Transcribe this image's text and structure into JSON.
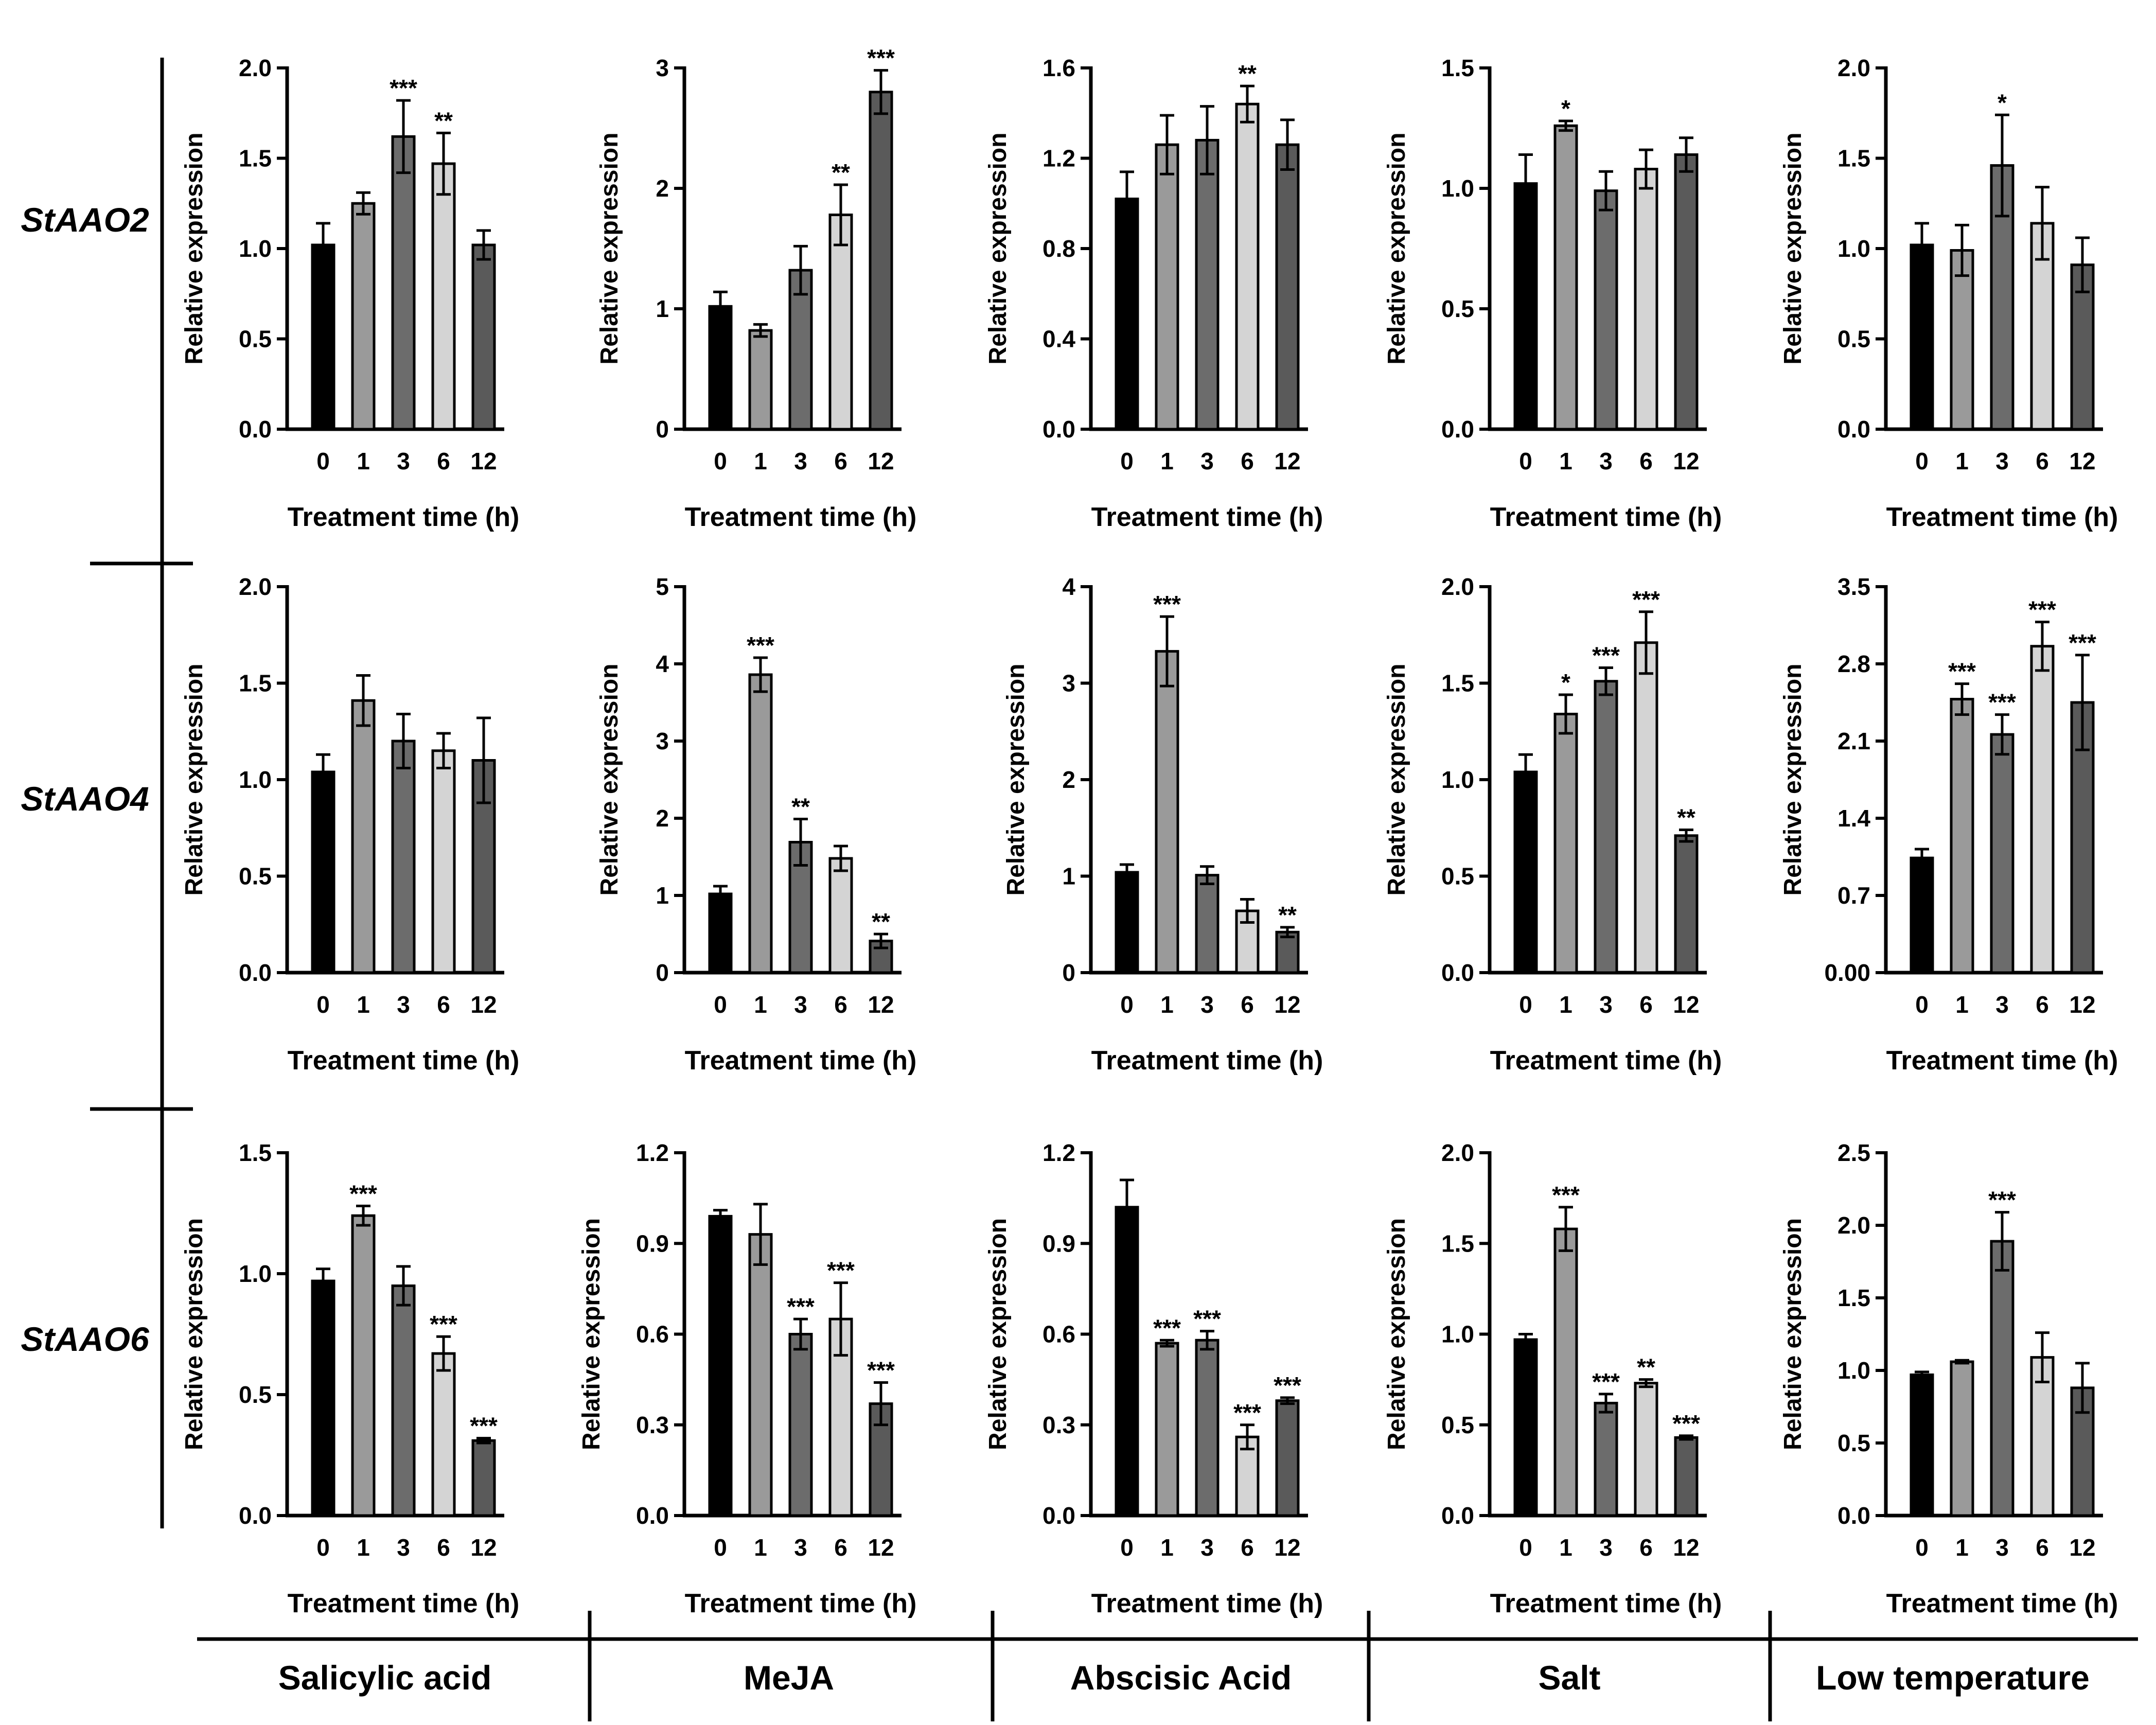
{
  "chart_data": {
    "type": "bar",
    "layout": "3x5 grid of bar charts with error bars",
    "common": {
      "xlabel": "Treatment time (h)",
      "ylabel": "Relative expression",
      "categories": [
        "0",
        "1",
        "3",
        "6",
        "12"
      ],
      "bar_colors": [
        "#000000",
        "#9a9a9a",
        "#6c6c6c",
        "#d4d4d4",
        "#5a5a5a"
      ]
    },
    "genes": [
      "StAAO2",
      "StAAO4",
      "StAAO6"
    ],
    "treatments": [
      "Salicylic acid",
      "MeJA",
      "Abscisic Acid",
      "Salt",
      "Low temperature"
    ],
    "panels": [
      [
        {
          "ylim": [
            0,
            2.0
          ],
          "ticks": [
            "0.0",
            "0.5",
            "1.0",
            "1.5",
            "2.0"
          ],
          "values": [
            1.02,
            1.25,
            1.62,
            1.47,
            1.02
          ],
          "errors": [
            0.12,
            0.06,
            0.2,
            0.17,
            0.08
          ],
          "sig": [
            "",
            "",
            "***",
            "**",
            ""
          ]
        },
        {
          "ylim": [
            0,
            3
          ],
          "ticks": [
            "0",
            "1",
            "2",
            "3"
          ],
          "values": [
            1.02,
            0.82,
            1.32,
            1.78,
            2.8
          ],
          "errors": [
            0.12,
            0.05,
            0.2,
            0.25,
            0.18
          ],
          "sig": [
            "",
            "",
            "",
            "**",
            "***"
          ]
        },
        {
          "ylim": [
            0,
            1.6
          ],
          "ticks": [
            "0.0",
            "0.4",
            "0.8",
            "1.2",
            "1.6"
          ],
          "values": [
            1.02,
            1.26,
            1.28,
            1.44,
            1.26
          ],
          "errors": [
            0.12,
            0.13,
            0.15,
            0.08,
            0.11
          ],
          "sig": [
            "",
            "",
            "",
            "**",
            ""
          ]
        },
        {
          "ylim": [
            0,
            1.5
          ],
          "ticks": [
            "0.0",
            "0.5",
            "1.0",
            "1.5"
          ],
          "values": [
            1.02,
            1.26,
            0.99,
            1.08,
            1.14
          ],
          "errors": [
            0.12,
            0.02,
            0.08,
            0.08,
            0.07
          ],
          "sig": [
            "",
            "*",
            "",
            "",
            ""
          ]
        },
        {
          "ylim": [
            0,
            2.0
          ],
          "ticks": [
            "0.0",
            "0.5",
            "1.0",
            "1.5",
            "2.0"
          ],
          "values": [
            1.02,
            0.99,
            1.46,
            1.14,
            0.91
          ],
          "errors": [
            0.12,
            0.14,
            0.28,
            0.2,
            0.15
          ],
          "sig": [
            "",
            "",
            "*",
            "",
            ""
          ]
        }
      ],
      [
        {
          "ylim": [
            0,
            2.0
          ],
          "ticks": [
            "0.0",
            "0.5",
            "1.0",
            "1.5",
            "2.0"
          ],
          "values": [
            1.04,
            1.41,
            1.2,
            1.15,
            1.1
          ],
          "errors": [
            0.09,
            0.13,
            0.14,
            0.09,
            0.22
          ],
          "sig": [
            "",
            "",
            "",
            "",
            ""
          ]
        },
        {
          "ylim": [
            0,
            5
          ],
          "ticks": [
            "0",
            "1",
            "2",
            "3",
            "4",
            "5"
          ],
          "values": [
            1.02,
            3.86,
            1.69,
            1.48,
            0.41
          ],
          "errors": [
            0.1,
            0.22,
            0.3,
            0.16,
            0.09
          ],
          "sig": [
            "",
            "***",
            "**",
            "",
            "**"
          ]
        },
        {
          "ylim": [
            0,
            4
          ],
          "ticks": [
            "0",
            "1",
            "2",
            "3",
            "4"
          ],
          "values": [
            1.04,
            3.33,
            1.01,
            0.64,
            0.42
          ],
          "errors": [
            0.08,
            0.36,
            0.09,
            0.12,
            0.05
          ],
          "sig": [
            "",
            "***",
            "",
            "",
            "**"
          ]
        },
        {
          "ylim": [
            0,
            2.0
          ],
          "ticks": [
            "0.0",
            "0.5",
            "1.0",
            "1.5",
            "2.0"
          ],
          "values": [
            1.04,
            1.34,
            1.51,
            1.71,
            0.71
          ],
          "errors": [
            0.09,
            0.1,
            0.07,
            0.16,
            0.03
          ],
          "sig": [
            "",
            "*",
            "***",
            "***",
            "**"
          ]
        },
        {
          "ylim": [
            0,
            3.5
          ],
          "ticks": [
            "0.00",
            "0.7",
            "1.4",
            "2.1",
            "2.8",
            "3.5"
          ],
          "values": [
            1.04,
            2.48,
            2.16,
            2.96,
            2.45
          ],
          "errors": [
            0.08,
            0.14,
            0.18,
            0.22,
            0.43
          ],
          "sig": [
            "",
            "***",
            "***",
            "***",
            "***"
          ]
        }
      ],
      [
        {
          "ylim": [
            0,
            1.5
          ],
          "ticks": [
            "0.0",
            "0.5",
            "1.0",
            "1.5"
          ],
          "values": [
            0.97,
            1.24,
            0.95,
            0.67,
            0.31
          ],
          "errors": [
            0.05,
            0.04,
            0.08,
            0.07,
            0.01
          ],
          "sig": [
            "",
            "***",
            "",
            "***",
            "***"
          ]
        },
        {
          "ylim": [
            0,
            1.2
          ],
          "ticks": [
            "0.0",
            "0.3",
            "0.6",
            "0.9",
            "1.2"
          ],
          "values": [
            0.99,
            0.93,
            0.6,
            0.65,
            0.37
          ],
          "errors": [
            0.02,
            0.1,
            0.05,
            0.12,
            0.07
          ],
          "sig": [
            "",
            "",
            "***",
            "***",
            "***"
          ]
        },
        {
          "ylim": [
            0,
            1.2
          ],
          "ticks": [
            "0.0",
            "0.3",
            "0.6",
            "0.9",
            "1.2"
          ],
          "values": [
            1.02,
            0.57,
            0.58,
            0.26,
            0.38
          ],
          "errors": [
            0.09,
            0.01,
            0.03,
            0.04,
            0.01
          ],
          "sig": [
            "",
            "***",
            "***",
            "***",
            "***"
          ]
        },
        {
          "ylim": [
            0,
            2.0
          ],
          "ticks": [
            "0.0",
            "0.5",
            "1.0",
            "1.5",
            "2.0"
          ],
          "values": [
            0.97,
            1.58,
            0.62,
            0.73,
            0.43
          ],
          "errors": [
            0.03,
            0.12,
            0.05,
            0.02,
            0.01
          ],
          "sig": [
            "",
            "***",
            "***",
            "**",
            "***"
          ]
        },
        {
          "ylim": [
            0,
            2.5
          ],
          "ticks": [
            "0.0",
            "0.5",
            "1.0",
            "1.5",
            "2.0",
            "2.5"
          ],
          "values": [
            0.97,
            1.06,
            1.89,
            1.09,
            0.88
          ],
          "errors": [
            0.02,
            0.01,
            0.2,
            0.17,
            0.17
          ],
          "sig": [
            "",
            "",
            "***",
            "",
            ""
          ]
        }
      ]
    ]
  }
}
